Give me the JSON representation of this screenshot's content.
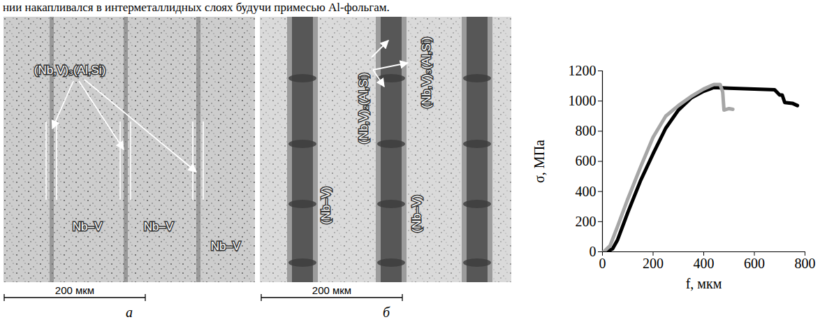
{
  "text_above": "нии накапливался в интерметаллидных слоях будучи примесью Al-фольгам.",
  "panels": [
    {
      "letter": "а",
      "labels": [
        "(Nb,V)₃(Al,Si)",
        "Nb–V",
        "Nb–V",
        "Nb–V"
      ],
      "scale_bar": "200 мкм"
    },
    {
      "letter": "б",
      "labels": [
        "(Nb,V)₂(Al,Si)",
        "(Nb,V)₃(Al,Si)",
        "(Nb–V)",
        "(Nb–V)"
      ],
      "scale_bar": "200 мкм"
    }
  ],
  "chart_data": {
    "type": "line",
    "x_label": "f, мкм",
    "y_label": "σ, МПа",
    "xlim": [
      0,
      800
    ],
    "ylim": [
      0,
      1200
    ],
    "xticks": [
      0,
      200,
      400,
      600,
      800
    ],
    "yticks": [
      0,
      200,
      400,
      600,
      800,
      1000,
      1200
    ],
    "grid": false,
    "series": [
      {
        "color": "#000000",
        "x": [
          15,
          40,
          60,
          100,
          150,
          200,
          250,
          300,
          350,
          400,
          440,
          500,
          600,
          680,
          700,
          710,
          720,
          750,
          770
        ],
        "values": [
          0,
          20,
          80,
          260,
          470,
          650,
          820,
          940,
          1020,
          1065,
          1090,
          1085,
          1080,
          1075,
          1040,
          1040,
          990,
          985,
          970
        ]
      },
      {
        "color": "#a6a6a6",
        "x": [
          5,
          30,
          60,
          100,
          150,
          200,
          250,
          300,
          350,
          400,
          440,
          465,
          475,
          480,
          500,
          515
        ],
        "values": [
          0,
          40,
          170,
          350,
          560,
          760,
          900,
          970,
          1030,
          1080,
          1110,
          1110,
          1060,
          940,
          950,
          945
        ]
      }
    ]
  }
}
